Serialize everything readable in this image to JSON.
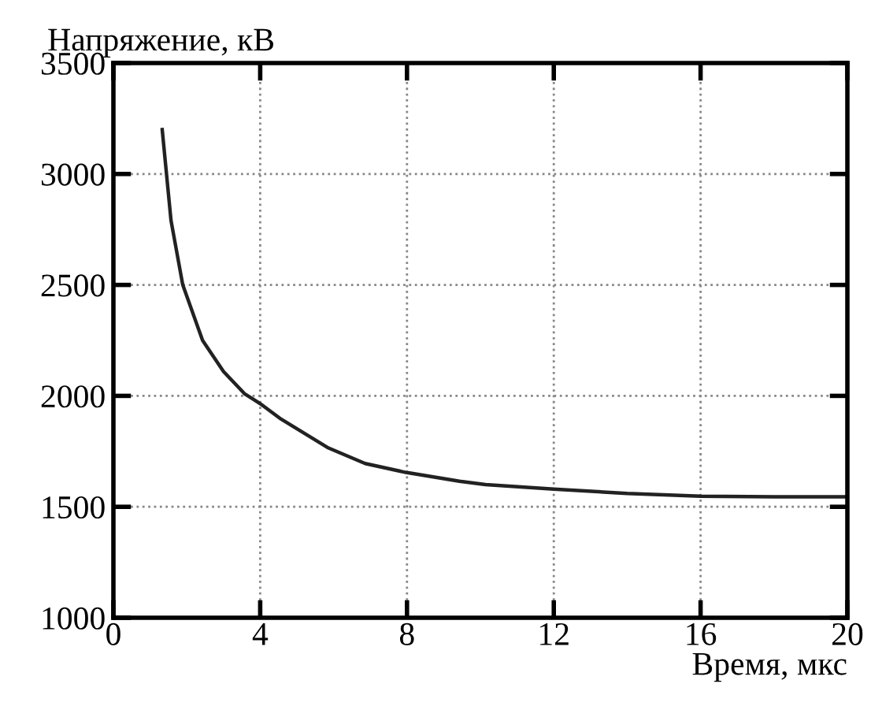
{
  "chart_data": {
    "type": "line",
    "xlabel": "Время, мкс",
    "ylabel": "Напряжение, кВ",
    "x": [
      1.33,
      1.57,
      1.89,
      2.43,
      3.0,
      3.57,
      4.0,
      4.57,
      5.86,
      6.86,
      7.97,
      9.43,
      10.14,
      12,
      14,
      16,
      18,
      20
    ],
    "series": [
      {
        "color": "#222222",
        "values": [
          3200,
          2790,
          2500,
          2250,
          2110,
          2010,
          1965,
          1895,
          1765,
          1695,
          1655,
          1615,
          1600,
          1580,
          1560,
          1548,
          1545,
          1545
        ]
      }
    ],
    "xlim": [
      0,
      20
    ],
    "ylim": [
      1000,
      3500
    ],
    "xticks": [
      0,
      4,
      8,
      12,
      16,
      20
    ],
    "yticks": [
      1000,
      1500,
      2000,
      2500,
      3000,
      3500
    ],
    "grid": true,
    "line_style": "solid",
    "marker": "none"
  }
}
